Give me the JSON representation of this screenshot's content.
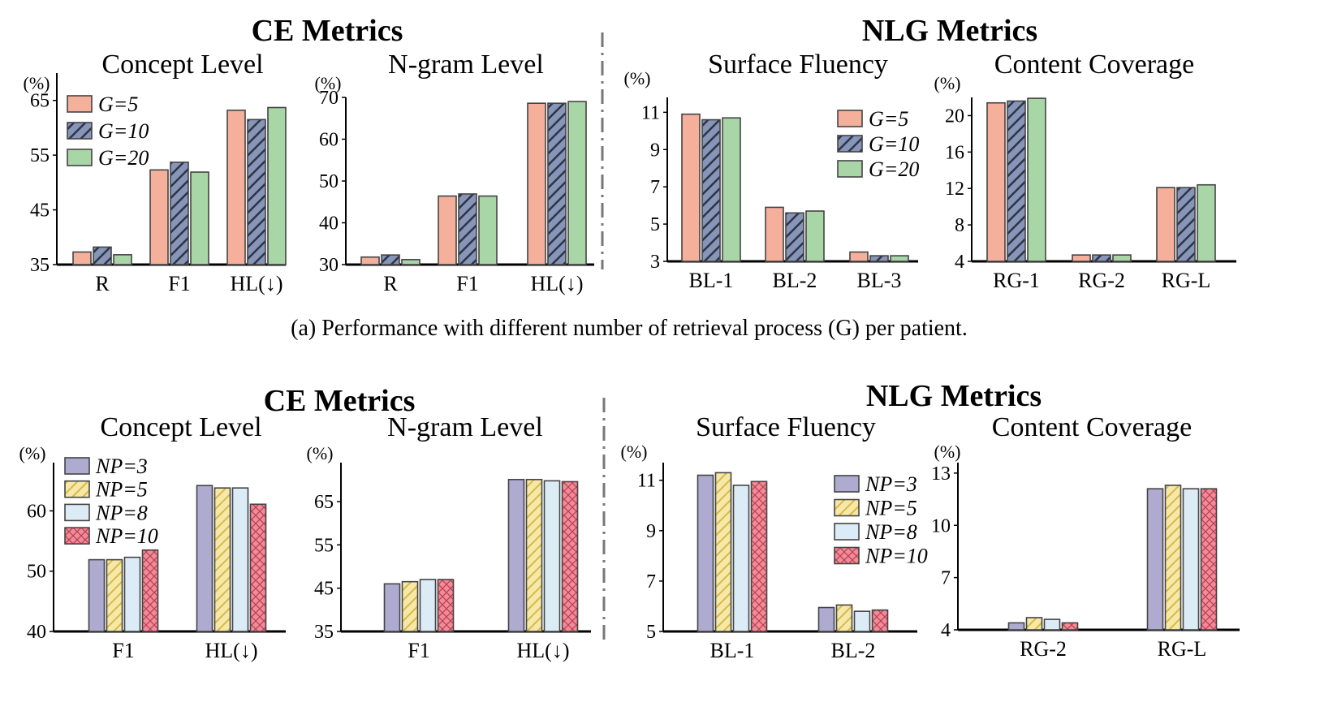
{
  "colors": {
    "g5": "#f5b09c",
    "g10": "#8795b8",
    "g20": "#a8d6a6",
    "np3": "#aeaad0",
    "np5": "#f3e28f",
    "np8": "#dcecf6",
    "np10": "#f28b99",
    "edge": "#444444",
    "axis": "#000000",
    "divider": "#777777"
  },
  "caption_a": "(a) Performance with different number of retrieval process (G) per patient.",
  "headings": [
    {
      "text": "CE Metrics"
    },
    {
      "text": "NLG Metrics"
    },
    {
      "text": "CE Metrics"
    },
    {
      "text": "NLG Metrics"
    }
  ],
  "chart_data": [
    {
      "type": "bar",
      "title": "Concept Level",
      "unit": "(%)",
      "categories": [
        "R",
        "F1",
        "HL(↓)"
      ],
      "ylim": [
        35,
        70
      ],
      "ticks": [
        "35",
        "45",
        "55",
        "65"
      ],
      "series": [
        {
          "name": "G=5",
          "values": [
            37.3,
            52.3,
            63.2
          ]
        },
        {
          "name": "G=10",
          "values": [
            38.2,
            53.7,
            61.5
          ]
        },
        {
          "name": "G=20",
          "values": [
            36.8,
            51.9,
            63.7
          ]
        }
      ],
      "legend": "top-left"
    },
    {
      "type": "bar",
      "title": "N-gram Level",
      "unit": "(%)",
      "categories": [
        "R",
        "F1",
        "HL(↓)"
      ],
      "ylim": [
        30,
        70
      ],
      "ticks": [
        "30",
        "40",
        "50",
        "60",
        "70"
      ],
      "series": [
        {
          "name": "G=5",
          "values": [
            31.8,
            46.4,
            68.6
          ]
        },
        {
          "name": "G=10",
          "values": [
            32.3,
            46.9,
            68.6
          ]
        },
        {
          "name": "G=20",
          "values": [
            31.2,
            46.4,
            69.0
          ]
        }
      ]
    },
    {
      "type": "bar",
      "title": "Surface Fluency",
      "unit": "(%)",
      "categories": [
        "BL-1",
        "BL-2",
        "BL-3"
      ],
      "ylim": [
        3,
        11.8
      ],
      "ticks": [
        "3",
        "5",
        "7",
        "9",
        "11"
      ],
      "series": [
        {
          "name": "G=5",
          "values": [
            10.9,
            5.9,
            3.5
          ]
        },
        {
          "name": "G=10",
          "values": [
            10.6,
            5.6,
            3.3
          ]
        },
        {
          "name": "G=20",
          "values": [
            10.7,
            5.7,
            3.3
          ]
        }
      ],
      "legend": "right"
    },
    {
      "type": "bar",
      "title": "Content Coverage",
      "unit": "(%)",
      "categories": [
        "RG-1",
        "RG-2",
        "RG-L"
      ],
      "ylim": [
        4,
        22
      ],
      "ticks": [
        "4",
        "8",
        "12",
        "16",
        "20"
      ],
      "series": [
        {
          "name": "G=5",
          "values": [
            21.4,
            4.7,
            12.1
          ]
        },
        {
          "name": "G=10",
          "values": [
            21.6,
            4.7,
            12.1
          ]
        },
        {
          "name": "G=20",
          "values": [
            21.9,
            4.7,
            12.4
          ]
        }
      ]
    },
    {
      "type": "bar",
      "title": "Concept Level",
      "unit": "(%)",
      "categories": [
        "F1",
        "HL(↓)"
      ],
      "ylim": [
        40,
        68
      ],
      "ticks": [
        "40",
        "50",
        "60"
      ],
      "series": [
        {
          "name": "NP=3",
          "values": [
            51.9,
            64.2
          ]
        },
        {
          "name": "NP=5",
          "values": [
            51.9,
            63.8
          ]
        },
        {
          "name": "NP=8",
          "values": [
            52.3,
            63.8
          ]
        },
        {
          "name": "NP=10",
          "values": [
            53.5,
            61.1
          ]
        }
      ],
      "legend": "top-left"
    },
    {
      "type": "bar",
      "title": "N-gram Level",
      "unit": "(%)",
      "categories": [
        "F1",
        "HL(↓)"
      ],
      "ylim": [
        35,
        74
      ],
      "ticks": [
        "35",
        "45",
        "55",
        "65"
      ],
      "series": [
        {
          "name": "NP=3",
          "values": [
            46.0,
            70.1
          ]
        },
        {
          "name": "NP=5",
          "values": [
            46.5,
            70.1
          ]
        },
        {
          "name": "NP=8",
          "values": [
            47.0,
            69.8
          ]
        },
        {
          "name": "NP=10",
          "values": [
            47.0,
            69.6
          ]
        }
      ]
    },
    {
      "type": "bar",
      "title": "Surface Fluency",
      "unit": "(%)",
      "categories": [
        "BL-1",
        "BL-2"
      ],
      "ylim": [
        5,
        11.7
      ],
      "ticks": [
        "5",
        "7",
        "9",
        "11"
      ],
      "series": [
        {
          "name": "NP=3",
          "values": [
            11.2,
            5.95
          ]
        },
        {
          "name": "NP=5",
          "values": [
            11.3,
            6.05
          ]
        },
        {
          "name": "NP=8",
          "values": [
            10.8,
            5.8
          ]
        },
        {
          "name": "NP=10",
          "values": [
            10.95,
            5.85
          ]
        }
      ],
      "legend": "right"
    },
    {
      "type": "bar",
      "title": "Content Coverage",
      "unit": "(%)",
      "categories": [
        "RG-2",
        "RG-L"
      ],
      "ylim": [
        4,
        13.6
      ],
      "ticks": [
        "4",
        "7",
        "10",
        "13"
      ],
      "series": [
        {
          "name": "NP=3",
          "values": [
            4.4,
            12.1
          ]
        },
        {
          "name": "NP=5",
          "values": [
            4.7,
            12.3
          ]
        },
        {
          "name": "NP=8",
          "values": [
            4.6,
            12.1
          ]
        },
        {
          "name": "NP=10",
          "values": [
            4.4,
            12.1
          ]
        }
      ]
    }
  ]
}
